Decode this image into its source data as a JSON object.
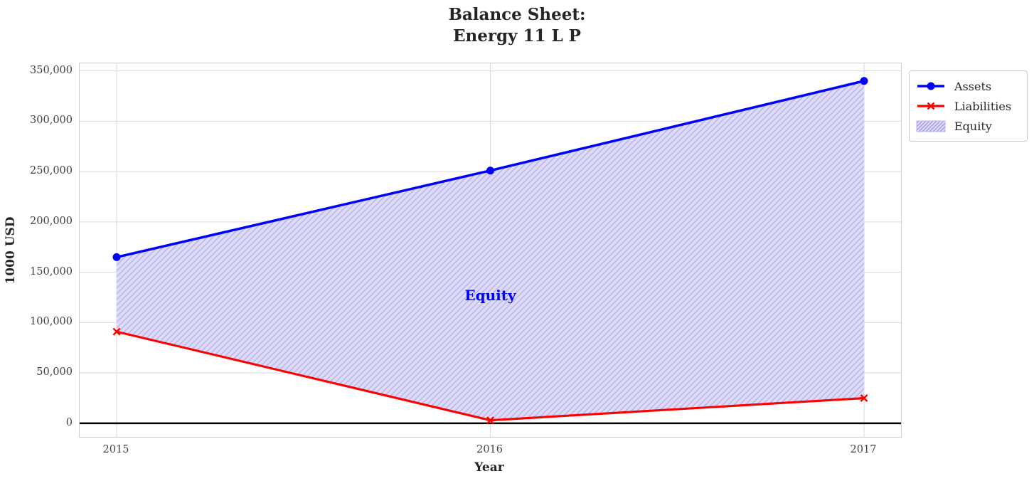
{
  "chart_data": {
    "type": "line",
    "title_lines": [
      "Balance Sheet:",
      "Energy 11 L P"
    ],
    "xlabel": "Year",
    "ylabel": "1000 USD",
    "x": [
      2015,
      2016,
      2017
    ],
    "x_tick_labels": [
      "2015",
      "2016",
      "2017"
    ],
    "series": [
      {
        "name": "Assets",
        "color": "#0000ff",
        "marker": "circle",
        "values": [
          165000,
          251000,
          340000
        ]
      },
      {
        "name": "Liabilities",
        "color": "#ff0000",
        "marker": "x",
        "values": [
          91000,
          3000,
          25000
        ]
      }
    ],
    "fill_between": {
      "name": "Equity",
      "upper": "Assets",
      "lower": "Liabilities",
      "fill_color": "#dedcf8",
      "hatch_color": "#b9b5ef",
      "hatch": "//"
    },
    "annotation": {
      "text": "Equity",
      "x": 2016,
      "y": 127000,
      "color": "#0000ff"
    },
    "y_ticks": [
      0,
      50000,
      100000,
      150000,
      200000,
      250000,
      300000,
      350000
    ],
    "y_tick_labels": [
      "0",
      "50,000",
      "100,000",
      "150,000",
      "200,000",
      "250,000",
      "300,000",
      "350,000"
    ],
    "ylim": [
      -13500,
      357500
    ],
    "zero_line": true,
    "grid": true,
    "legend_position": "upper right outside",
    "colors": {
      "grid": "#d9d9d9",
      "spine": "#cfcfcf",
      "tick_label": "#404040",
      "title": "#262626",
      "zero_line": "#000000"
    }
  }
}
